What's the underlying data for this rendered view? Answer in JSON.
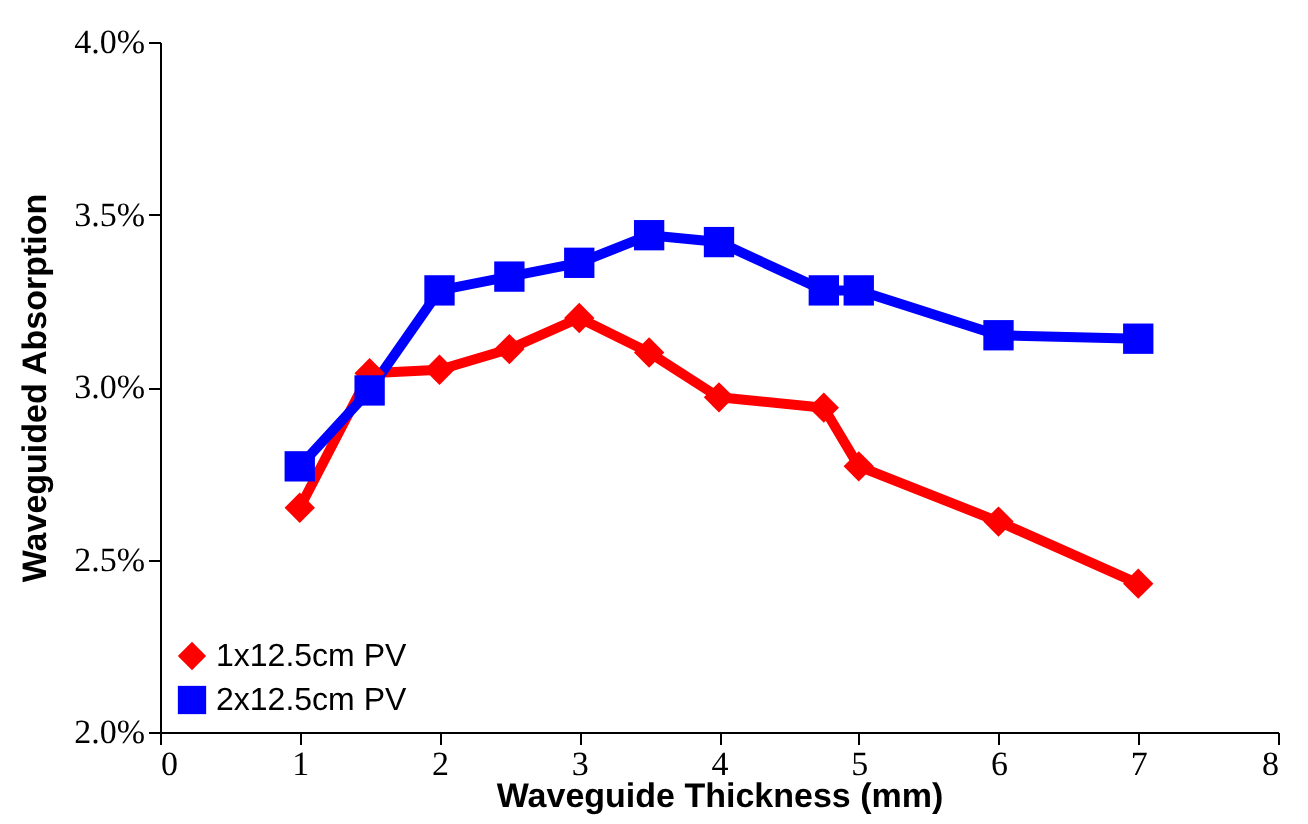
{
  "chart_data": {
    "type": "line",
    "xlabel": "Waveguide Thickness  (mm)",
    "ylabel": "Waveguided Absorption",
    "xlim": [
      0,
      8
    ],
    "xticks": [
      0,
      1,
      2,
      3,
      4,
      5,
      6,
      7,
      8
    ],
    "ylim": [
      2,
      4
    ],
    "yticks": [
      {
        "value": 2,
        "label": "2.0%"
      },
      {
        "value": 2.5,
        "label": "2.5%"
      },
      {
        "value": 3,
        "label": "3.0%"
      },
      {
        "value": 3.5,
        "label": "3.5%"
      },
      {
        "value": 4,
        "label": "4.0%"
      }
    ],
    "grid": false,
    "legend": "bottom left",
    "line_style": "solid",
    "series": [
      {
        "name": "1x12.5cm PV",
        "color": "#ff0000",
        "marker": "diamond",
        "x": [
          1,
          1.5,
          2,
          2.5,
          3,
          3.5,
          4,
          4.75,
          5,
          6,
          7
        ],
        "values": [
          2.65,
          3.04,
          3.05,
          3.11,
          3.2,
          3.1,
          2.97,
          2.94,
          2.77,
          2.61,
          2.43
        ]
      },
      {
        "name": "2x12.5cm PV",
        "color": "#0000ff",
        "marker": "square",
        "x": [
          1,
          1.5,
          2,
          2.5,
          3,
          3.5,
          4,
          4.75,
          5,
          6,
          7
        ],
        "values": [
          2.77,
          2.99,
          3.28,
          3.32,
          3.36,
          3.44,
          3.42,
          3.28,
          3.28,
          3.15,
          3.14
        ]
      }
    ]
  }
}
